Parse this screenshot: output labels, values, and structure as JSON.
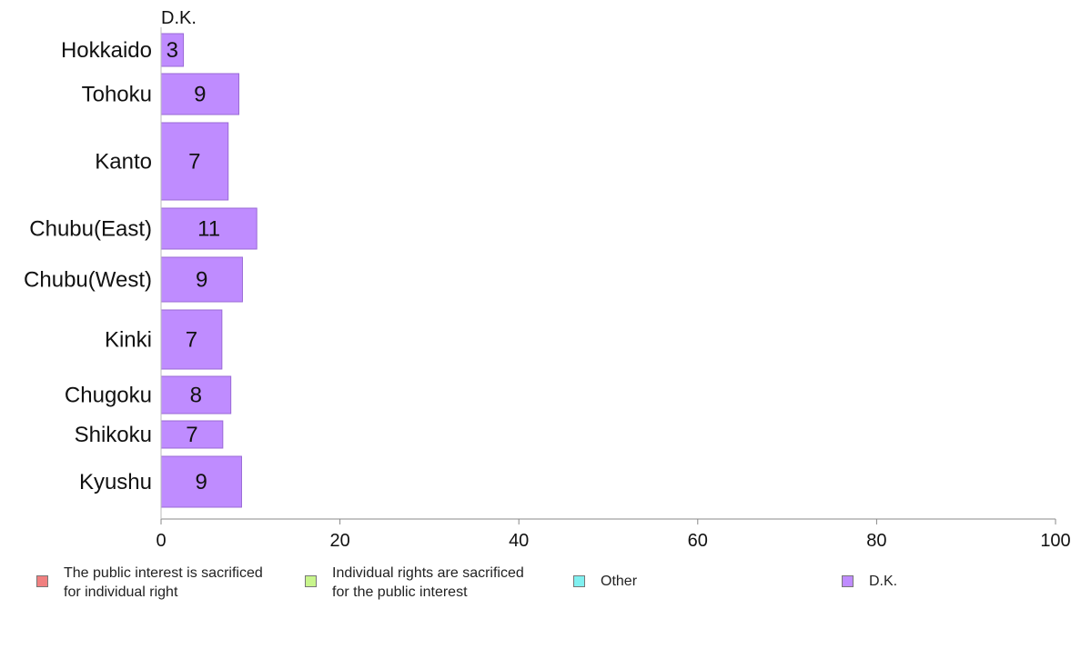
{
  "chart_data": {
    "type": "bar",
    "orientation": "horizontal",
    "stacked": true,
    "title": "",
    "xlabel": "",
    "ylabel": "",
    "xlim": [
      0,
      100
    ],
    "x_ticks": [
      "0",
      "20",
      "40",
      "60",
      "80",
      "100"
    ],
    "categories": [
      "Hokkaido",
      "Tohoku",
      "Kanto",
      "Chubu(East)",
      "Chubu(West)",
      "Kinki",
      "Chugoku",
      "Shikoku",
      "Kyushu"
    ],
    "series_header": "D.K.",
    "series": [
      {
        "name": "The public interest is sacrificed\nfor individual right",
        "color": "#f08080",
        "values": [
          0,
          0,
          0,
          0,
          0,
          0,
          0,
          0,
          0
        ]
      },
      {
        "name": "Individual rights are sacrificed\nfor the public interest",
        "color": "#c8f58c",
        "values": [
          0,
          0,
          0,
          0,
          0,
          0,
          0,
          0,
          0
        ]
      },
      {
        "name": "Other",
        "color": "#80f0f0",
        "values": [
          0,
          0,
          0,
          0,
          0,
          0,
          0,
          0,
          0
        ]
      },
      {
        "name": "D.K.",
        "color": "#bf8cff",
        "values": [
          2.5,
          8.7,
          7.5,
          10.7,
          9.1,
          6.8,
          7.8,
          6.9,
          9.0
        ],
        "labels": [
          "3",
          "9",
          "7",
          "11",
          "9",
          "7",
          "8",
          "7",
          "9"
        ]
      }
    ],
    "legend_position": "bottom",
    "grid": false
  }
}
